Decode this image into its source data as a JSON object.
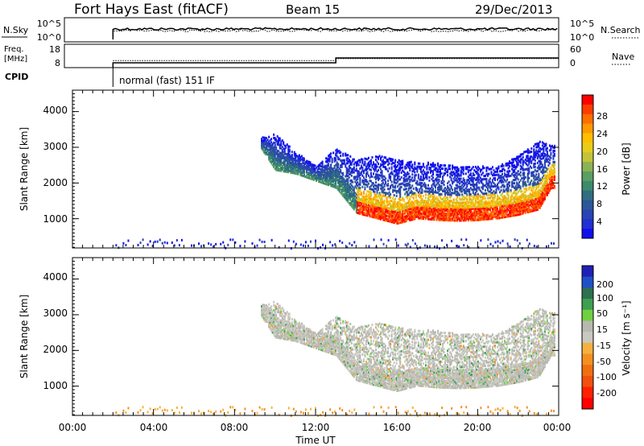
{
  "header": {
    "station": "Fort Hays East (fitACF)",
    "beam": "Beam 15",
    "date": "29/Dec/2013"
  },
  "top_panels": {
    "nsky": {
      "label": "N.Sky",
      "left_ticks": [
        "10^5",
        "10^0"
      ],
      "right_ticks": [
        "10^5",
        "10^0"
      ],
      "right_label": "N.Search"
    },
    "freq": {
      "label_line1": "Freq.",
      "label_line2": "[MHz]",
      "left_ticks": [
        "18",
        "8"
      ],
      "right_ticks": [
        "60",
        "0"
      ],
      "right_label": "Nave"
    },
    "cpid": {
      "label": "CPID",
      "value": "normal (fast) 151 IF"
    }
  },
  "x_axis": {
    "label": "Time UT",
    "ticks": [
      "00:00",
      "04:00",
      "08:00",
      "12:00",
      "16:00",
      "20:00",
      "00:00"
    ]
  },
  "y_axis": {
    "label": "Slant Range [km]",
    "ticks": [
      "4000",
      "3000",
      "2000",
      "1000"
    ]
  },
  "colorbars": {
    "power": {
      "label": "Power [dB]",
      "ticks": [
        "28",
        "24",
        "20",
        "16",
        "12",
        "8",
        "4"
      ],
      "colors": [
        "#ff0000",
        "#ff3c00",
        "#ff6e00",
        "#ff9a00",
        "#ffbf00",
        "#e9cc1a",
        "#c2c33a",
        "#8cb253",
        "#5a9f63",
        "#3c8a6c",
        "#2f6f80",
        "#2c5799",
        "#2b44b3",
        "#2030d2",
        "#1010ee"
      ]
    },
    "velocity": {
      "label": "Velocity [m s⁻¹]",
      "ticks": [
        "200",
        "100",
        "50",
        "15",
        "-15",
        "-50",
        "-100",
        "-200"
      ],
      "colors": [
        "#2020b8",
        "#2050c8",
        "#2e7050",
        "#3da050",
        "#6fd040",
        "#b8b8b0",
        "#c8c8c0",
        "#f5b040",
        "#f59020",
        "#f07010",
        "#f05010",
        "#ff2000",
        "#ff0000"
      ]
    }
  },
  "chart_data": {
    "type": "heatmap",
    "title": "Fort Hays East (fitACF)",
    "xlabel": "Time UT",
    "ylabel": "Slant Range [km]",
    "x_range_hours": [
      0,
      24
    ],
    "y_range_km": [
      180,
      4600
    ],
    "cpid_start_hour": 2.0,
    "freq_step_hour": 13.0,
    "freq_mhz_before": 10.5,
    "freq_mhz_after": 13.0,
    "nave_before": 22,
    "nave_after": 28,
    "power_scatter_lower_edge_km": [
      {
        "hour": 9.3,
        "km": 3000
      },
      {
        "hour": 10.0,
        "km": 2400
      },
      {
        "hour": 11.0,
        "km": 2300
      },
      {
        "hour": 12.0,
        "km": 2100
      },
      {
        "hour": 13.0,
        "km": 1900
      },
      {
        "hour": 14.0,
        "km": 1200
      },
      {
        "hour": 15.0,
        "km": 1050
      },
      {
        "hour": 16.0,
        "km": 900
      },
      {
        "hour": 17.0,
        "km": 1050
      },
      {
        "hour": 18.0,
        "km": 1000
      },
      {
        "hour": 19.0,
        "km": 980
      },
      {
        "hour": 20.0,
        "km": 1000
      },
      {
        "hour": 21.0,
        "km": 1050
      },
      {
        "hour": 22.0,
        "km": 1150
      },
      {
        "hour": 23.0,
        "km": 1300
      },
      {
        "hour": 23.6,
        "km": 1900
      }
    ],
    "power_scatter_upper_edge_km": [
      {
        "hour": 9.3,
        "km": 3300
      },
      {
        "hour": 10.0,
        "km": 3400
      },
      {
        "hour": 11.0,
        "km": 2900
      },
      {
        "hour": 12.0,
        "km": 2500
      },
      {
        "hour": 13.0,
        "km": 3000
      },
      {
        "hour": 14.0,
        "km": 2700
      },
      {
        "hour": 15.0,
        "km": 2800
      },
      {
        "hour": 16.0,
        "km": 2700
      },
      {
        "hour": 17.0,
        "km": 2600
      },
      {
        "hour": 18.0,
        "km": 2600
      },
      {
        "hour": 19.0,
        "km": 2500
      },
      {
        "hour": 20.0,
        "km": 2500
      },
      {
        "hour": 21.0,
        "km": 2500
      },
      {
        "hour": 22.0,
        "km": 2800
      },
      {
        "hour": 23.0,
        "km": 3200
      },
      {
        "hour": 23.8,
        "km": 3100
      }
    ],
    "strong_band_start_hour": 14.0
  }
}
